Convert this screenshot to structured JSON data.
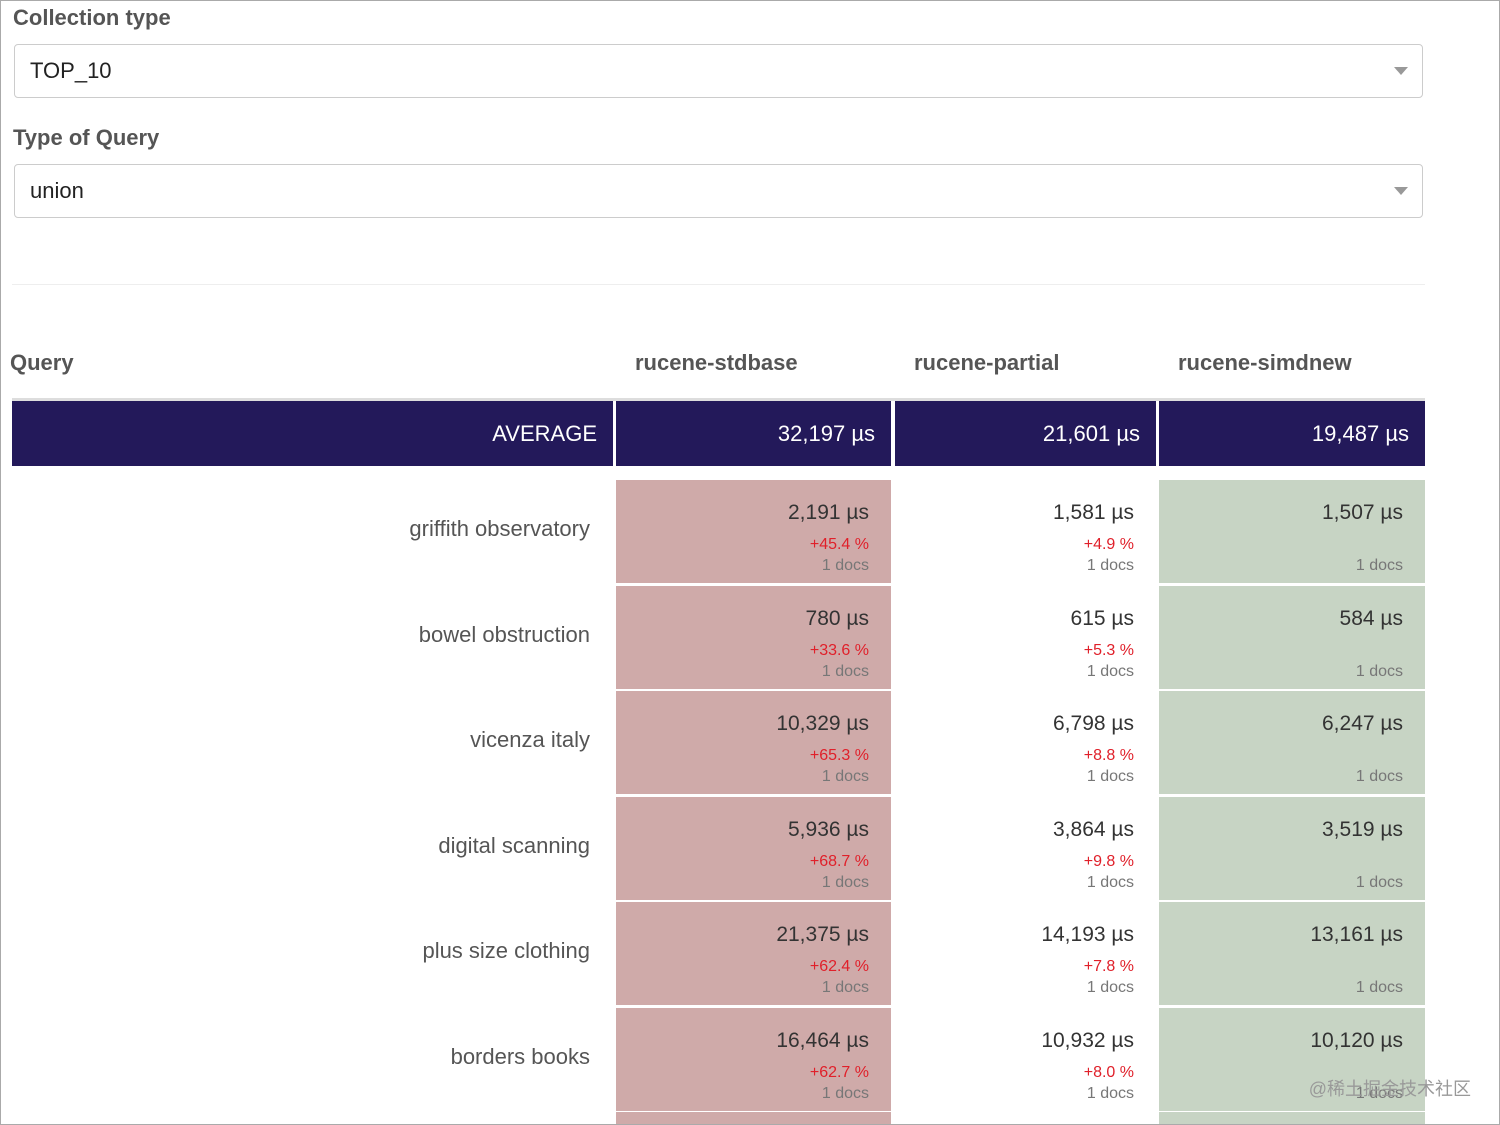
{
  "form": {
    "fields": [
      {
        "label": "Collection type",
        "value": "TOP_10"
      },
      {
        "label": "Type of Query",
        "value": "union"
      }
    ]
  },
  "table": {
    "headers": [
      "Query",
      "rucene-stdbase",
      "rucene-partial",
      "rucene-simdnew"
    ],
    "average": [
      "AVERAGE",
      "32,197 µs",
      "21,601 µs",
      "19,487 µs"
    ],
    "rows": [
      {
        "query": "griffith observatory",
        "cells": [
          {
            "time": "2,191 µs",
            "delta": "+45.4 %",
            "docs": "1 docs"
          },
          {
            "time": "1,581 µs",
            "delta": "+4.9 %",
            "docs": "1 docs"
          },
          {
            "time": "1,507 µs",
            "docs": "1 docs"
          }
        ]
      },
      {
        "query": "bowel obstruction",
        "cells": [
          {
            "time": "780 µs",
            "delta": "+33.6 %",
            "docs": "1 docs"
          },
          {
            "time": "615 µs",
            "delta": "+5.3 %",
            "docs": "1 docs"
          },
          {
            "time": "584 µs",
            "docs": "1 docs"
          }
        ]
      },
      {
        "query": "vicenza italy",
        "cells": [
          {
            "time": "10,329 µs",
            "delta": "+65.3 %",
            "docs": "1 docs"
          },
          {
            "time": "6,798 µs",
            "delta": "+8.8 %",
            "docs": "1 docs"
          },
          {
            "time": "6,247 µs",
            "docs": "1 docs"
          }
        ]
      },
      {
        "query": "digital scanning",
        "cells": [
          {
            "time": "5,936 µs",
            "delta": "+68.7 %",
            "docs": "1 docs"
          },
          {
            "time": "3,864 µs",
            "delta": "+9.8 %",
            "docs": "1 docs"
          },
          {
            "time": "3,519 µs",
            "docs": "1 docs"
          }
        ]
      },
      {
        "query": "plus size clothing",
        "cells": [
          {
            "time": "21,375 µs",
            "delta": "+62.4 %",
            "docs": "1 docs"
          },
          {
            "time": "14,193 µs",
            "delta": "+7.8 %",
            "docs": "1 docs"
          },
          {
            "time": "13,161 µs",
            "docs": "1 docs"
          }
        ]
      },
      {
        "query": "borders books",
        "cells": [
          {
            "time": "16,464 µs",
            "delta": "+62.7 %",
            "docs": "1 docs"
          },
          {
            "time": "10,932 µs",
            "delta": "+8.0 %",
            "docs": "1 docs"
          },
          {
            "time": "10,120 µs",
            "docs": "1 docs"
          }
        ]
      }
    ]
  },
  "watermark": "@稀土掘金技术社区"
}
